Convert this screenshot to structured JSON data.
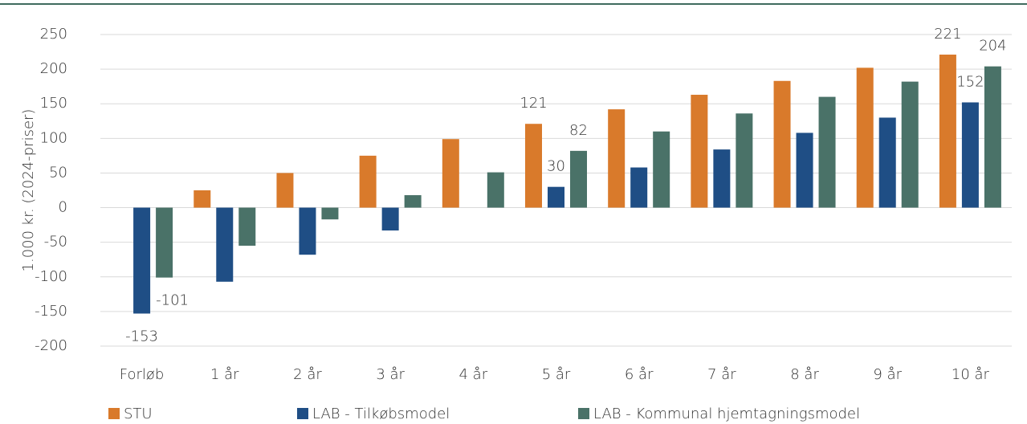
{
  "chart_data": {
    "type": "bar",
    "y_label": "1.000 kr. (2024-priser)",
    "categories": [
      "Forløb",
      "1 år",
      "2 år",
      "3 år",
      "4 år",
      "5 år",
      "6 år",
      "7 år",
      "8 år",
      "9 år",
      "10 år"
    ],
    "series": [
      {
        "name": "STU",
        "color": "#d97a2b",
        "values": [
          null,
          25,
          50,
          75,
          99,
          121,
          142,
          163,
          183,
          202,
          221
        ],
        "value_labels": [
          null,
          null,
          null,
          null,
          null,
          "121",
          null,
          null,
          null,
          null,
          "221"
        ]
      },
      {
        "name": "LAB - Tilkøbsmodel",
        "color": "#1f4e85",
        "values": [
          -153,
          -107,
          -68,
          -33,
          0,
          30,
          58,
          84,
          108,
          130,
          152
        ],
        "value_labels": [
          "-153",
          null,
          null,
          null,
          null,
          "30",
          null,
          null,
          null,
          null,
          "152"
        ]
      },
      {
        "name": "LAB - Kommunal hjemtagningsmodel",
        "color": "#4a7268",
        "values": [
          -101,
          -55,
          -17,
          18,
          51,
          82,
          110,
          136,
          160,
          182,
          204
        ],
        "value_labels": [
          "-101",
          null,
          null,
          null,
          null,
          "82",
          null,
          null,
          null,
          null,
          "204"
        ]
      }
    ],
    "ylim": [
      -200,
      250
    ],
    "yticks": [
      -200,
      -150,
      -100,
      -50,
      0,
      50,
      100,
      150,
      200,
      250
    ],
    "grid": true
  }
}
